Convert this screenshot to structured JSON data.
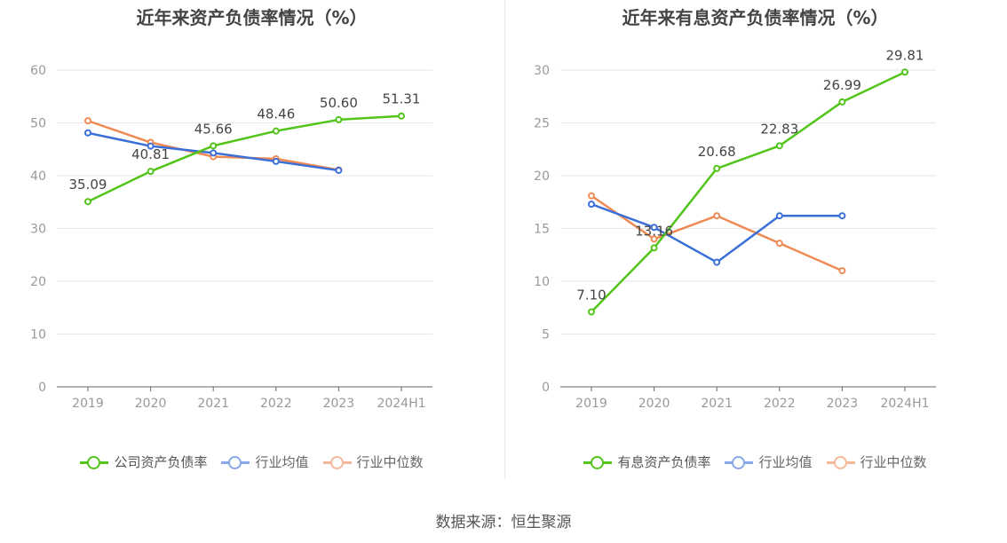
{
  "source_text": "数据来源：恒生聚源",
  "chart_data": [
    {
      "type": "line",
      "title": "近年来资产负债率情况（%）",
      "categories": [
        "2019",
        "2020",
        "2021",
        "2022",
        "2023",
        "2024H1"
      ],
      "ylim": [
        0,
        60
      ],
      "yticks": [
        0,
        10,
        20,
        30,
        40,
        50,
        60
      ],
      "grid": true,
      "legend_position": "bottom",
      "series": [
        {
          "name": "公司资产负债率",
          "color": "#52c41a",
          "values": [
            35.09,
            40.81,
            45.66,
            48.46,
            50.6,
            51.31
          ],
          "labels": [
            "35.09",
            "40.81",
            "45.66",
            "48.46",
            "50.60",
            "51.31"
          ]
        },
        {
          "name": "行业均值",
          "color": "#3a6fd8",
          "values": [
            48.1,
            45.6,
            44.3,
            42.7,
            41.0,
            null
          ]
        },
        {
          "name": "行业中位数",
          "color": "#f08a55",
          "values": [
            50.4,
            46.3,
            43.6,
            43.2,
            41.1,
            null
          ]
        }
      ]
    },
    {
      "type": "line",
      "title": "近年来有息资产负债率情况（%）",
      "categories": [
        "2019",
        "2020",
        "2021",
        "2022",
        "2023",
        "2024H1"
      ],
      "ylim": [
        0,
        30
      ],
      "yticks": [
        0,
        5,
        10,
        15,
        20,
        25,
        30
      ],
      "grid": true,
      "legend_position": "bottom",
      "series": [
        {
          "name": "有息资产负债率",
          "color": "#52c41a",
          "values": [
            7.1,
            13.16,
            20.68,
            22.83,
            26.99,
            29.81
          ],
          "labels": [
            "7.10",
            "13.16",
            "20.68",
            "22.83",
            "26.99",
            "29.81"
          ]
        },
        {
          "name": "行业均值",
          "color": "#3a6fd8",
          "values": [
            17.3,
            15.1,
            11.8,
            16.2,
            16.2,
            null
          ]
        },
        {
          "name": "行业中位数",
          "color": "#f08a55",
          "values": [
            18.1,
            14.0,
            16.2,
            13.6,
            11.0,
            null
          ]
        }
      ]
    }
  ]
}
